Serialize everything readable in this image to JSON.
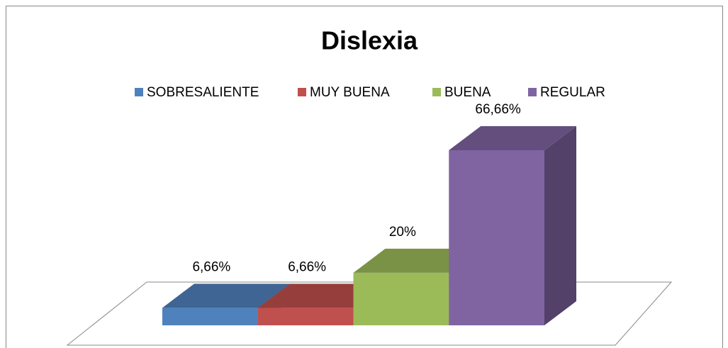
{
  "chart_data": {
    "type": "bar3d",
    "title": "Dislexia",
    "series": [
      {
        "name": "SOBRESALIENTE",
        "color": "#4f81bd",
        "values": [
          6.66
        ],
        "value_labels": [
          "6,66%"
        ]
      },
      {
        "name": "MUY BUENA",
        "color": "#c0504d",
        "values": [
          6.66
        ],
        "value_labels": [
          "6,66%"
        ]
      },
      {
        "name": "BUENA",
        "color": "#9bbb59",
        "values": [
          20
        ],
        "value_labels": [
          "20%"
        ]
      },
      {
        "name": "REGULAR",
        "color": "#8064a2",
        "values": [
          66.66
        ],
        "value_labels": [
          "66,66%"
        ]
      }
    ],
    "legend": "top"
  }
}
